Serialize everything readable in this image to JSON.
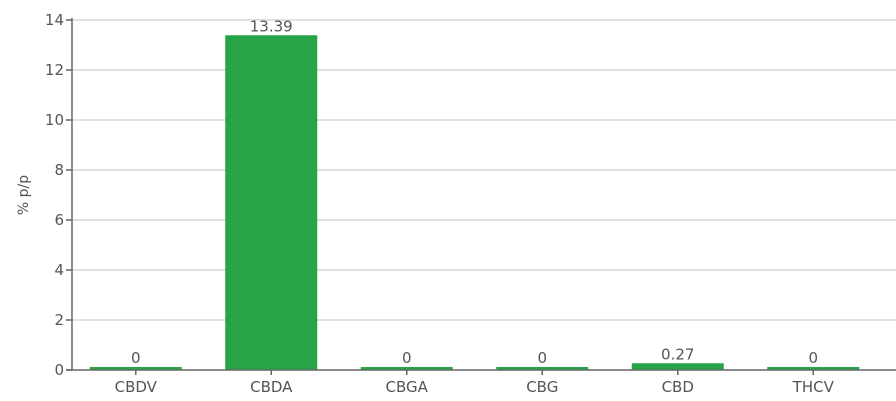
{
  "chart_data": {
    "type": "bar",
    "title": "",
    "xlabel": "",
    "ylabel": "% p/p",
    "ylim": [
      0,
      14
    ],
    "yticks": [
      0,
      2,
      4,
      6,
      8,
      10,
      12,
      14
    ],
    "grid": true,
    "legend": "none",
    "categories": [
      "CBDV",
      "CBDA",
      "CBGA",
      "CBG",
      "CBD",
      "THCV"
    ],
    "values": [
      0,
      13.39,
      0,
      0,
      0.27,
      0
    ],
    "value_labels": [
      "0",
      "13.39",
      "0",
      "0",
      "0.27",
      "0"
    ],
    "colors": {
      "bar": "#27a348",
      "grid": "#d6d6d6",
      "axis": "#666666",
      "text": "#555555"
    }
  }
}
